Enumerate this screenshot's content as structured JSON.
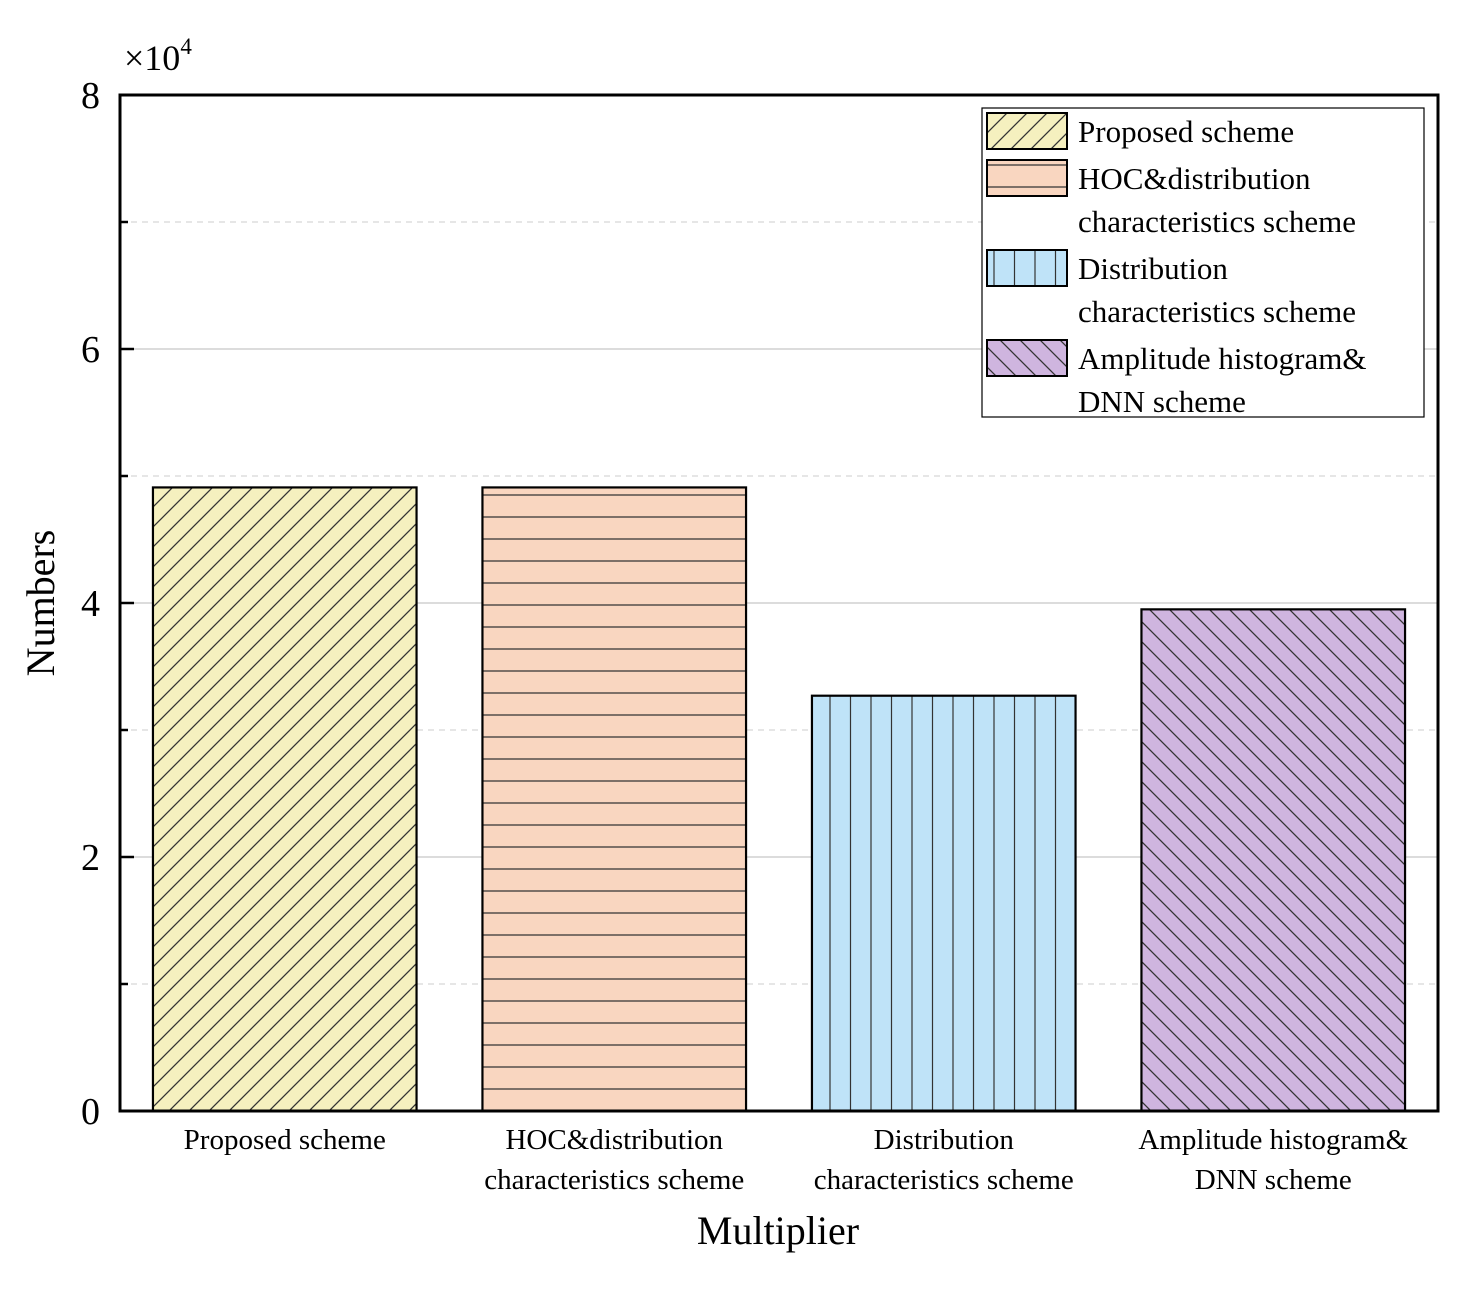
{
  "chart_data": {
    "type": "bar",
    "title": "",
    "xlabel": "Multiplier",
    "ylabel": "Numbers",
    "y_multiplier_base": "×10",
    "y_multiplier_exponent": "4",
    "ylim": [
      0,
      8
    ],
    "yticks": [
      0,
      2,
      4,
      6,
      8
    ],
    "ytick_labels": [
      "0",
      "2",
      "4",
      "6",
      "8"
    ],
    "grid": true,
    "legend_position": "top-right",
    "categories": [
      [
        "Proposed scheme"
      ],
      [
        "HOC&distribution",
        "characteristics scheme"
      ],
      [
        "Distribution",
        "characteristics scheme"
      ],
      [
        "Amplitude histogram&",
        "DNN scheme"
      ]
    ],
    "values": [
      4.91,
      4.91,
      3.27,
      3.95
    ],
    "series": [
      {
        "name": [
          "Proposed scheme"
        ],
        "value": 4.91,
        "color": "#f5f0bf",
        "pattern": "diag-up"
      },
      {
        "name": [
          "HOC&distribution",
          "characteristics scheme"
        ],
        "value": 4.91,
        "color": "#f9d6c0",
        "pattern": "horizontal"
      },
      {
        "name": [
          "Distribution",
          "characteristics scheme"
        ],
        "value": 3.27,
        "color": "#bfe3f8",
        "pattern": "vertical"
      },
      {
        "name": [
          "Amplitude histogram&",
          "DNN scheme"
        ],
        "value": 3.95,
        "color": "#cfb5df",
        "pattern": "diag-down"
      }
    ]
  }
}
